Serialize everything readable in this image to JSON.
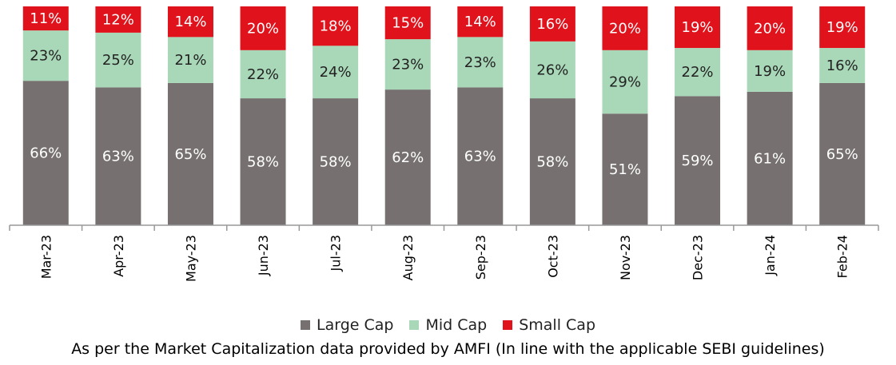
{
  "chart_data": {
    "type": "bar",
    "stacked": true,
    "percent_stacked": true,
    "categories": [
      "Mar-23",
      "Apr-23",
      "May-23",
      "Jun-23",
      "Jul-23",
      "Aug-23",
      "Sep-23",
      "Oct-23",
      "Nov-23",
      "Dec-23",
      "Jan-24",
      "Feb-24"
    ],
    "series": [
      {
        "name": "Large Cap",
        "color": "#767170",
        "values": [
          66,
          63,
          65,
          58,
          58,
          62,
          63,
          58,
          51,
          59,
          61,
          65
        ]
      },
      {
        "name": "Mid Cap",
        "color": "#a9d8b8",
        "values": [
          23,
          25,
          21,
          22,
          24,
          23,
          23,
          26,
          29,
          22,
          19,
          16
        ]
      },
      {
        "name": "Small Cap",
        "color": "#e0121b",
        "values": [
          11,
          12,
          14,
          20,
          18,
          15,
          14,
          16,
          20,
          19,
          20,
          19
        ]
      }
    ],
    "value_format": "percent",
    "legend_position": "bottom",
    "grid": false,
    "ylim": [
      0,
      100
    ]
  },
  "footnote": "As per the Market Capitalization data provided by AMFI (In line with the applicable SEBI guidelines)"
}
